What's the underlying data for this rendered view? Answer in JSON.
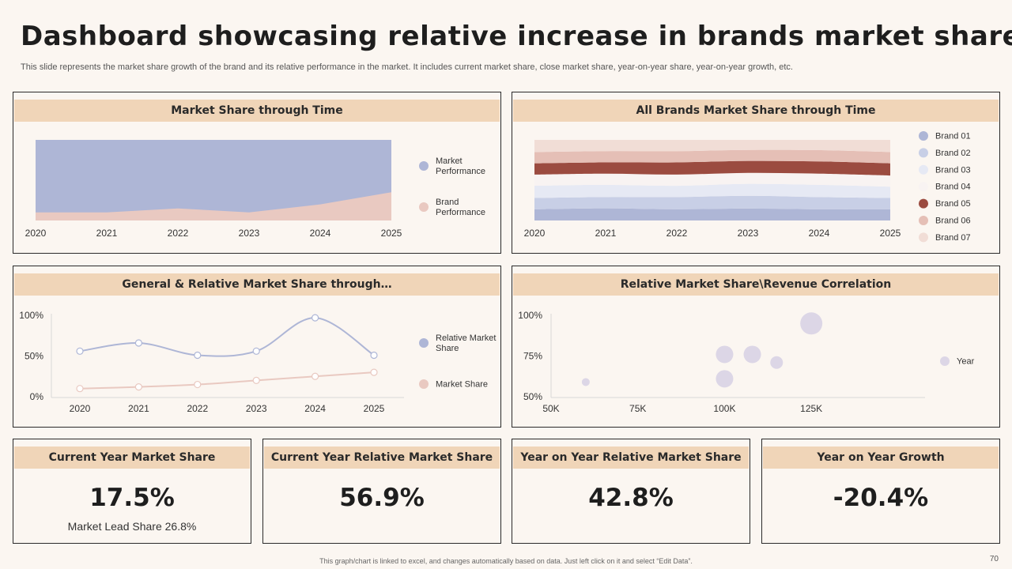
{
  "header": {
    "title": "Dashboard showcasing relative increase in brands market share",
    "subtitle": "This slide represents the market share growth of the brand and its relative performance in the market. It includes current market share, close market share, year-on-year share, year-on-year growth, etc."
  },
  "chart_data": [
    {
      "id": "market-share-through-time",
      "type": "area",
      "title": "Market Share through Time",
      "x": [
        "2020",
        "2021",
        "2022",
        "2023",
        "2024",
        "2025"
      ],
      "series": [
        {
          "name": "Market Performance",
          "values": [
            100,
            100,
            100,
            100,
            100,
            100
          ],
          "color": "#aeb6d6"
        },
        {
          "name": "Brand Performance",
          "values": [
            10,
            10,
            15,
            10,
            20,
            35
          ],
          "color": "#e9c9c1"
        }
      ],
      "ylim": [
        0,
        100
      ],
      "legend": "right",
      "grid": false
    },
    {
      "id": "all-brands-market-share",
      "type": "area",
      "stacked": true,
      "title": "All Brands Market Share through Time",
      "x": [
        "2020",
        "2021",
        "2022",
        "2023",
        "2024",
        "2025"
      ],
      "series": [
        {
          "name": "Brand 01",
          "values": [
            12,
            13,
            12,
            13,
            12,
            12
          ],
          "color": "#aeb6d6"
        },
        {
          "name": "Brand 02",
          "values": [
            12,
            12,
            13,
            14,
            13,
            12
          ],
          "color": "#c8cfe6"
        },
        {
          "name": "Brand 03",
          "values": [
            13,
            13,
            12,
            13,
            13,
            12
          ],
          "color": "#e6e9f4"
        },
        {
          "name": "Brand 04",
          "values": [
            12,
            12,
            12,
            12,
            12,
            12
          ],
          "color": "#f8f3f2"
        },
        {
          "name": "Brand 05",
          "values": [
            12,
            12,
            13,
            13,
            13,
            13
          ],
          "color": "#9b4b40"
        },
        {
          "name": "Brand 06",
          "values": [
            12,
            12,
            12,
            12,
            12,
            12
          ],
          "color": "#e5bfb6"
        },
        {
          "name": "Brand 07",
          "values": [
            13,
            12,
            12,
            11,
            11,
            13
          ],
          "color": "#f1ddd6"
        }
      ],
      "legend": "right",
      "grid": false
    },
    {
      "id": "general-relative-market-share",
      "type": "line",
      "title": "General & Relative Market Share through…",
      "x": [
        "2020",
        "2021",
        "2022",
        "2023",
        "2024",
        "2025"
      ],
      "series": [
        {
          "name": "Relative Market Share",
          "values": [
            56,
            66,
            51,
            56,
            97,
            51
          ],
          "color": "#aeb6d6"
        },
        {
          "name": "Market Share",
          "values": [
            10,
            12,
            15,
            20,
            25,
            30
          ],
          "color": "#e9c9c1"
        }
      ],
      "yticks": [
        "0%",
        "50%",
        "100%"
      ],
      "ylim": [
        0,
        100
      ],
      "legend": "right",
      "grid": false
    },
    {
      "id": "relative-share-revenue-correlation",
      "type": "scatter",
      "title": "Relative Market Share\\Revenue Correlation",
      "xticks": [
        "50K",
        "75K",
        "100K",
        "125K"
      ],
      "yticks": [
        "50%",
        "75%",
        "100%"
      ],
      "xlim": [
        50000,
        140000
      ],
      "ylim": [
        50,
        100
      ],
      "series": [
        {
          "name": "Year",
          "color": "#dcd6e6",
          "points": [
            {
              "x": 60000,
              "y": 59,
              "size": 4
            },
            {
              "x": 100000,
              "y": 76,
              "size": 10
            },
            {
              "x": 100000,
              "y": 61,
              "size": 10
            },
            {
              "x": 108000,
              "y": 76,
              "size": 10
            },
            {
              "x": 115000,
              "y": 71,
              "size": 7
            },
            {
              "x": 125000,
              "y": 95,
              "size": 13
            }
          ]
        }
      ],
      "legend": "right",
      "grid": false
    }
  ],
  "kpis": [
    {
      "title": "Current Year Market Share",
      "value": "17.5%",
      "sub": "Market  Lead Share 26.8%"
    },
    {
      "title": "Current Year Relative Market Share",
      "value": "56.9%"
    },
    {
      "title": "Year on Year Relative Market Share",
      "value": "42.8%"
    },
    {
      "title": "Year on Year Growth",
      "value": "-20.4%"
    }
  ],
  "footer": {
    "note": "This graph/chart is linked to excel, and changes automatically based on data. Just left click on it and select “Edit Data”.",
    "page": "70"
  }
}
